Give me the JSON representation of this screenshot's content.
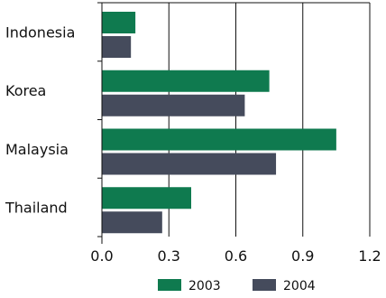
{
  "chart_data": {
    "type": "bar",
    "orientation": "horizontal",
    "categories": [
      "Indonesia",
      "Korea",
      "Malaysia",
      "Thailand"
    ],
    "series": [
      {
        "name": "2003",
        "values": [
          0.15,
          0.75,
          1.05,
          0.4
        ],
        "color": "#0f7a4f"
      },
      {
        "name": "2004",
        "values": [
          0.13,
          0.64,
          0.78,
          0.27
        ],
        "color": "#454b5c"
      }
    ],
    "xticks": [
      "0.0",
      "0.3",
      "0.6",
      "0.9",
      "1.2"
    ],
    "xtick_values": [
      0,
      0.3,
      0.6,
      0.9,
      1.2
    ],
    "xlim": [
      0,
      1.2
    ],
    "grid": "vertical",
    "legend": "bottom"
  }
}
